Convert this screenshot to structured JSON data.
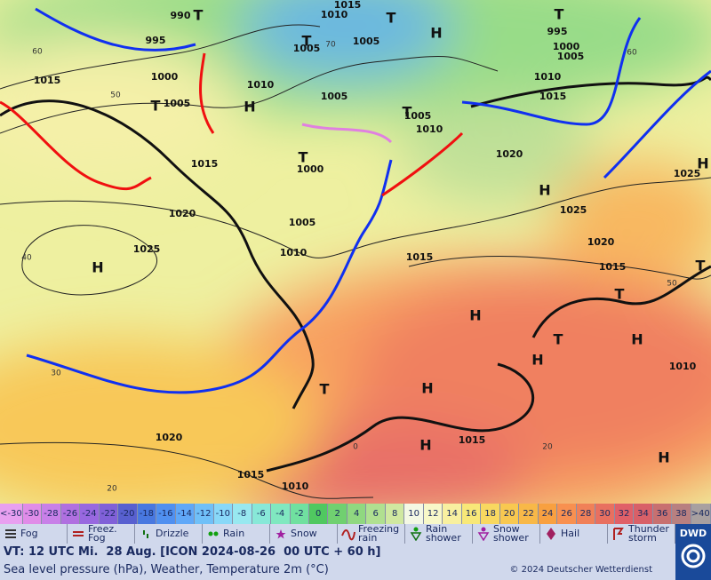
{
  "map": {
    "isobar_labels": [
      "990",
      "995",
      "1000",
      "1005",
      "1015",
      "1015",
      "1020",
      "1025",
      "1010",
      "1005",
      "1000",
      "1005",
      "1010",
      "1015",
      "1010",
      "1015",
      "1005",
      "1005",
      "1005",
      "1010",
      "1020",
      "1025",
      "1020",
      "1015",
      "995",
      "1000",
      "1005",
      "1010",
      "1015",
      "1025",
      "1010",
      "1015",
      "1020",
      "1015",
      "1010"
    ],
    "pressure_centers": [
      "H",
      "H",
      "H",
      "H",
      "H",
      "H",
      "H",
      "H",
      "H",
      "H",
      "H",
      "T",
      "T",
      "T",
      "T",
      "T",
      "T",
      "T",
      "T",
      "T",
      "T",
      "T"
    ],
    "graticule_labels": [
      "60",
      "50",
      "40",
      "30",
      "20",
      "70",
      "60",
      "50",
      "0",
      "20"
    ]
  },
  "temperature_legend": {
    "labels": [
      "<-30",
      "-30",
      "-28",
      "-26",
      "-24",
      "-22",
      "-20",
      "-18",
      "-16",
      "-14",
      "-12",
      "-10",
      "-8",
      "-6",
      "-4",
      "-2",
      "0",
      "2",
      "4",
      "6",
      "8",
      "10",
      "12",
      "14",
      "16",
      "18",
      "20",
      "22",
      "24",
      "26",
      "28",
      "30",
      "32",
      "34",
      "36",
      "38",
      ">40"
    ],
    "colors": [
      "#e8a0f0",
      "#e08ce8",
      "#c880e8",
      "#b070e0",
      "#9868e0",
      "#8060d8",
      "#5860d0",
      "#4878e0",
      "#5090f0",
      "#60a8f8",
      "#70c0f8",
      "#88d8f8",
      "#98e8f0",
      "#88e8d8",
      "#80e8c0",
      "#70e0a0",
      "#50c860",
      "#70d070",
      "#90d880",
      "#b0e090",
      "#d0e8a0",
      "#f4f8e4",
      "#f8f8c8",
      "#f8f0a0",
      "#f8e878",
      "#f8d860",
      "#f8c850",
      "#f8b848",
      "#f8a040",
      "#f89050",
      "#f08058",
      "#e87060",
      "#e06068",
      "#d86068",
      "#c87070",
      "#b88080",
      "#a8a0a0"
    ]
  },
  "weather_legend": [
    "Fog",
    "Freez. Fog",
    "Drizzle",
    "Rain",
    "Snow",
    "Freezing rain",
    "Rain shower",
    "Snow shower",
    "Hail",
    "Thunder storm"
  ],
  "footer": {
    "valid_time": "VT: 12 UTC Mi.  28 Aug. [ICON 2024-08-26  00 UTC + 60 h]",
    "parameters": "Sea level pressure (hPa), Weather, Temperature 2m (°C)",
    "copyright": "© 2024 Deutscher Wetterdienst",
    "logo": "DWD"
  }
}
